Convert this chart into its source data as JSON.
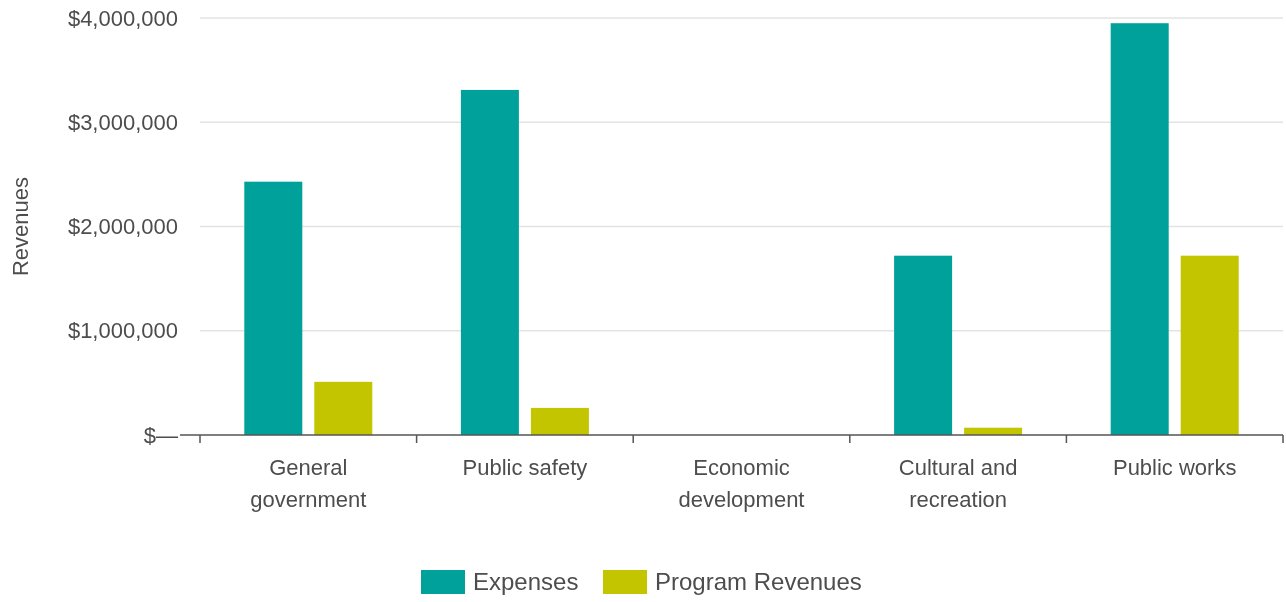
{
  "chart_data": {
    "type": "bar",
    "ylabel": "Revenues",
    "categories": [
      "General government",
      "Public safety",
      "Economic development",
      "Cultural and recreation",
      "Public works"
    ],
    "series": [
      {
        "name": "Expenses",
        "color": "#00a19a",
        "values": [
          2430000,
          3310000,
          0,
          1720000,
          3950000
        ]
      },
      {
        "name": "Program Revenues",
        "color": "#c2c500",
        "values": [
          510000,
          260000,
          0,
          70000,
          1720000
        ]
      }
    ],
    "ylim": [
      0,
      4000000
    ],
    "yticks": [
      {
        "value": 0,
        "label": "$—"
      },
      {
        "value": 1000000,
        "label": "$1,000,000"
      },
      {
        "value": 2000000,
        "label": "$2,000,000"
      },
      {
        "value": 3000000,
        "label": "$3,000,000"
      },
      {
        "value": 4000000,
        "label": "$4,000,000"
      }
    ],
    "grid": "y",
    "legend": "bottom"
  }
}
